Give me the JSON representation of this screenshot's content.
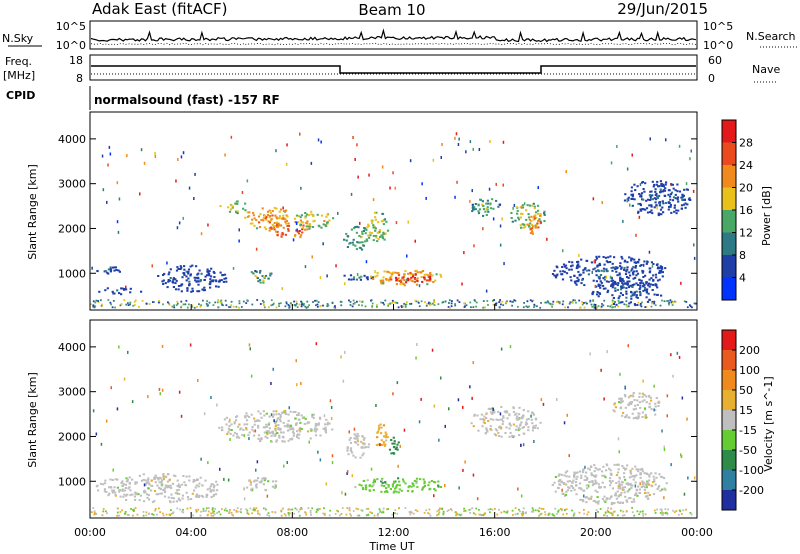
{
  "header": {
    "station": "Adak East (fitACF)",
    "beam": "Beam 10",
    "date": "29/Jun/2015"
  },
  "top_panels": {
    "nsky_label": "N.Sky",
    "nsearch_label": "N.Search",
    "noise_ticks": [
      "10^5",
      "10^0"
    ],
    "freq_label": "Freq.",
    "freq_unit": "[MHz]",
    "freq_ticks": [
      "18",
      "8"
    ],
    "nave_label": "Nave",
    "nave_ticks": [
      "60",
      "0"
    ],
    "cpid_label": "CPID",
    "cpid_text": "normalsound (fast) -157 RF"
  },
  "chart_data": [
    {
      "type": "heatmap",
      "name": "power",
      "ylabel": "Slant Range [km]",
      "ylim": [
        180,
        4600
      ],
      "yticks": [
        1000,
        2000,
        3000,
        4000
      ],
      "xlim": [
        0,
        24
      ],
      "colorbar": {
        "label": "Power [dB]",
        "ticks": [
          "28",
          "24",
          "20",
          "16",
          "12",
          "8",
          "4"
        ],
        "colors": [
          "#0033ff",
          "#1e3ea8",
          "#2d7a86",
          "#4aa867",
          "#e8c21a",
          "#f08a1c",
          "#ea4a1e",
          "#e41a1a"
        ]
      },
      "regions": [
        {
          "t": [
            5.0,
            6.2
          ],
          "r": [
            2350,
            2650
          ],
          "level": 4
        },
        {
          "t": [
            6.0,
            8.0
          ],
          "r": [
            2000,
            2500
          ],
          "level": 5
        },
        {
          "t": [
            7.0,
            8.8
          ],
          "r": [
            1800,
            2200
          ],
          "level": 6
        },
        {
          "t": [
            8.0,
            9.6
          ],
          "r": [
            2000,
            2400
          ],
          "level": 4
        },
        {
          "t": [
            10.0,
            11.0
          ],
          "r": [
            1500,
            2100
          ],
          "level": 3
        },
        {
          "t": [
            10.8,
            11.8
          ],
          "r": [
            1700,
            2400
          ],
          "level": 4
        },
        {
          "t": [
            6.2,
            7.2
          ],
          "r": [
            800,
            1100
          ],
          "level": 3
        },
        {
          "t": [
            10.0,
            11.2
          ],
          "r": [
            850,
            1050
          ],
          "level": 2
        },
        {
          "t": [
            11.0,
            14.0
          ],
          "r": [
            750,
            1100
          ],
          "level": 5
        },
        {
          "t": [
            11.8,
            13.6
          ],
          "r": [
            800,
            1000
          ],
          "level": 7
        },
        {
          "t": [
            15.0,
            16.2
          ],
          "r": [
            2300,
            2700
          ],
          "level": 3
        },
        {
          "t": [
            16.6,
            18.0
          ],
          "r": [
            2000,
            2600
          ],
          "level": 4
        },
        {
          "t": [
            17.2,
            17.8
          ],
          "r": [
            1900,
            2300
          ],
          "level": 6
        },
        {
          "t": [
            18.2,
            22.8
          ],
          "r": [
            700,
            1400
          ],
          "level": 1
        },
        {
          "t": [
            19.8,
            22.6
          ],
          "r": [
            300,
            900
          ],
          "level": 1
        },
        {
          "t": [
            0.2,
            1.2
          ],
          "r": [
            1000,
            1200
          ],
          "level": 1
        },
        {
          "t": [
            0.2,
            2.0
          ],
          "r": [
            550,
            700
          ],
          "level": 1
        },
        {
          "t": [
            2.6,
            5.4
          ],
          "r": [
            600,
            1200
          ],
          "level": 1
        },
        {
          "t": [
            21.0,
            23.8
          ],
          "r": [
            2300,
            3100
          ],
          "level": 1
        }
      ]
    },
    {
      "type": "heatmap",
      "name": "velocity",
      "ylabel": "Slant Range [km]",
      "xlabel": "Time UT",
      "ylim": [
        180,
        4600
      ],
      "yticks": [
        1000,
        2000,
        3000,
        4000
      ],
      "xlim": [
        0,
        24
      ],
      "xticks": [
        "00:00",
        "04:00",
        "08:00",
        "12:00",
        "16:00",
        "20:00",
        "00:00"
      ],
      "colorbar": {
        "label": "Velocity [m s^-1]",
        "ticks": [
          "200",
          "100",
          "50",
          "15",
          "-15",
          "-50",
          "-100",
          "-200"
        ],
        "colors": [
          "#1f2fa0",
          "#2f7fa0",
          "#2e8b4a",
          "#66cc33",
          "#bfbfbf",
          "#e8b030",
          "#f08a1c",
          "#ea5a1e",
          "#e41a1a"
        ]
      },
      "regions": [
        {
          "t": [
            5.0,
            9.6
          ],
          "r": [
            1900,
            2600
          ],
          "level": 4
        },
        {
          "t": [
            10.0,
            11.0
          ],
          "r": [
            1500,
            2100
          ],
          "level": 4
        },
        {
          "t": [
            11.2,
            11.8
          ],
          "r": [
            1700,
            2300
          ],
          "level": 5
        },
        {
          "t": [
            11.8,
            12.2
          ],
          "r": [
            1600,
            2000
          ],
          "level": 2
        },
        {
          "t": [
            10.4,
            14.0
          ],
          "r": [
            750,
            1100
          ],
          "level": 3
        },
        {
          "t": [
            6.0,
            7.4
          ],
          "r": [
            800,
            1100
          ],
          "level": 4
        },
        {
          "t": [
            15.0,
            17.8
          ],
          "r": [
            2000,
            2700
          ],
          "level": 4
        },
        {
          "t": [
            18.2,
            22.8
          ],
          "r": [
            500,
            1400
          ],
          "level": 4
        },
        {
          "t": [
            20.6,
            22.6
          ],
          "r": [
            2400,
            3000
          ],
          "level": 4
        },
        {
          "t": [
            0.2,
            5.4
          ],
          "r": [
            550,
            1200
          ],
          "level": 4
        }
      ]
    }
  ]
}
